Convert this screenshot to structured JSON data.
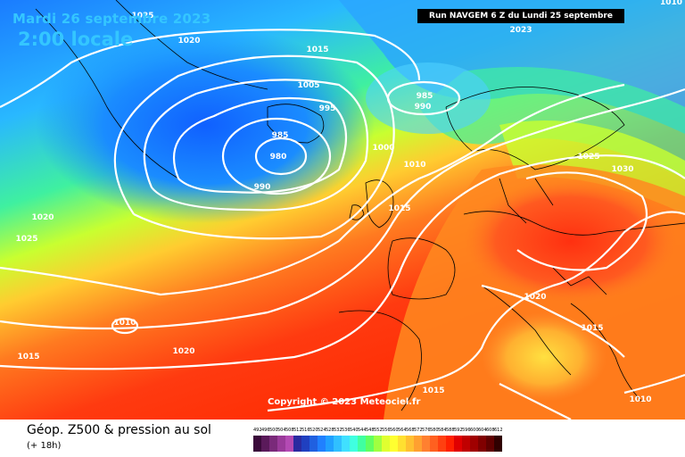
{
  "header": {
    "date": "Mardi 26 septembre 2023",
    "time": "2:00 locale",
    "run": "Run NAVGEM 6 Z du Lundi 25 septembre 2023",
    "edge_value": "1010"
  },
  "copyright": "Copyright © 2023 Meteociel.fr",
  "footer": {
    "title": "Géop. Z500 & pression au sol",
    "subtitle": "(+ 18h)"
  },
  "scale": {
    "values": [
      492,
      496,
      500,
      504,
      508,
      512,
      516,
      520,
      524,
      528,
      532,
      536,
      540,
      544,
      548,
      552,
      556,
      560,
      564,
      568,
      572,
      576,
      580,
      584,
      588,
      592,
      596,
      600,
      604,
      608,
      612
    ],
    "colors": [
      "#3a0a3a",
      "#5a1a5a",
      "#7a2a7a",
      "#9a3a9a",
      "#b44ab4",
      "#2a2aa0",
      "#2040c0",
      "#2060e0",
      "#2080ff",
      "#20a0ff",
      "#30c0ff",
      "#40e0ff",
      "#40ffe0",
      "#40ffa0",
      "#60ff60",
      "#a0ff40",
      "#e0ff30",
      "#ffff30",
      "#ffe030",
      "#ffc030",
      "#ffa030",
      "#ff8030",
      "#ff6020",
      "#ff4010",
      "#ff2000",
      "#e00000",
      "#c00000",
      "#a00000",
      "#800000",
      "#600000",
      "#300000"
    ]
  },
  "isobar_labels": [
    "1025",
    "1020",
    "1015",
    "1005",
    "995",
    "985",
    "980",
    "990",
    "985",
    "990",
    "1000",
    "1010",
    "1015",
    "1025",
    "1030",
    "1020",
    "1025",
    "1010",
    "1015",
    "1020",
    "1020",
    "1015",
    "1015",
    "1010"
  ]
}
